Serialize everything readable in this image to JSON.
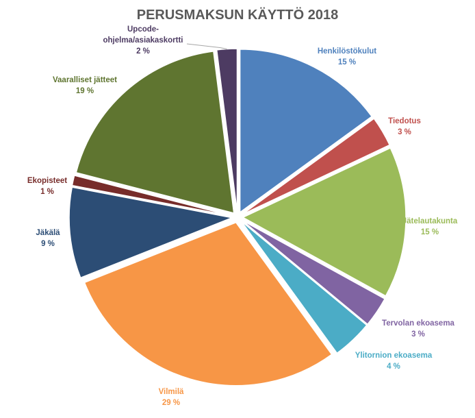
{
  "chart_data": {
    "type": "pie",
    "title": "PERUSMAKSUN KÄYTTÖ 2018",
    "slices": [
      {
        "label": "Henkilöstökulut",
        "value": 15,
        "value_label": "15 %",
        "color": "#4F81BD"
      },
      {
        "label": "Tiedotus",
        "value": 3,
        "value_label": "3 %",
        "color": "#C0504D"
      },
      {
        "label": "Jätelautakunta",
        "value": 15,
        "value_label": "15 %",
        "color": "#9BBB59"
      },
      {
        "label": "Tervolan ekoasema",
        "value": 3,
        "value_label": "3 %",
        "color": "#8064A2"
      },
      {
        "label": "Ylitornion ekoasema",
        "value": 4,
        "value_label": "4 %",
        "color": "#4BACC6"
      },
      {
        "label": "Vilmilä",
        "value": 29,
        "value_label": "29 %",
        "color": "#F79646"
      },
      {
        "label": "Jäkälä",
        "value": 9,
        "value_label": "9 %",
        "color": "#2C4D75"
      },
      {
        "label": "Ekopisteet",
        "value": 1,
        "value_label": "1 %",
        "color": "#772C2A"
      },
      {
        "label": "Vaaralliset jätteet",
        "value": 19,
        "value_label": "19 %",
        "color": "#5F7530"
      },
      {
        "label": "Upcode-ohjelma/asiakaskortti",
        "label_lines": [
          "Upcode-",
          "ohjelma/asiakaskortti"
        ],
        "value": 2,
        "value_label": "2 %",
        "color": "#4D3B62"
      }
    ],
    "start_angle": "12 o'clock, clockwise",
    "exploded": true,
    "legend": "none"
  }
}
